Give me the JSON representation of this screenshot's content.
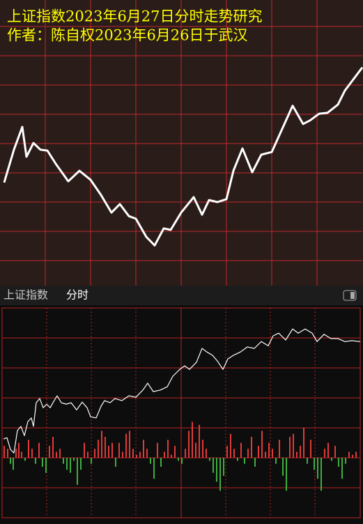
{
  "chart_data": [
    {
      "type": "line",
      "title": "上证指数2023年6月27日分时走势研究",
      "subtitle": "作者：陈自权2023年6月26日于武汉",
      "x": [
        6,
        20,
        32,
        38,
        48,
        58,
        68,
        80,
        98,
        114,
        130,
        145,
        160,
        172,
        185,
        195,
        210,
        222,
        235,
        245,
        260,
        278,
        290,
        300,
        312,
        325,
        335,
        348,
        362,
        375,
        390,
        405,
        420,
        435,
        445,
        458,
        470,
        485,
        495,
        520
      ],
      "values": [
        36.7,
        47.9,
        55.7,
        45.5,
        50.2,
        47.9,
        47.6,
        43.1,
        37.1,
        40.7,
        37.6,
        32.4,
        26.4,
        29.3,
        25.2,
        24.3,
        18.1,
        15.2,
        21,
        20.5,
        26.4,
        31.7,
        25.7,
        30.7,
        30,
        31,
        40.7,
        48.3,
        40.2,
        46.2,
        47.1,
        55,
        62.9,
        56.7,
        57.9,
        60.2,
        60.5,
        63.3,
        68.1,
        76
      ],
      "color": "#ffffff",
      "xlim": [
        0,
        520
      ],
      "ylim": [
        0,
        100
      ],
      "xticks": [
        65,
        130,
        195,
        260,
        325,
        390,
        455
      ],
      "yticks": [
        10,
        20,
        30,
        40,
        50,
        60,
        70,
        80,
        90
      ],
      "grid": true,
      "grid_color": "#c0282a"
    },
    {
      "type": "line",
      "title": "上证指数",
      "subtitle": "分时",
      "x": [
        2,
        7,
        12,
        17,
        22,
        27,
        32,
        37,
        42,
        45,
        49,
        54,
        59,
        64,
        69,
        74,
        79,
        85,
        92,
        99,
        107,
        115,
        122,
        127,
        135,
        142,
        147,
        155,
        162,
        172,
        182,
        192,
        202,
        209,
        217,
        227,
        237,
        245,
        255,
        262,
        269,
        279,
        287,
        294,
        302,
        309,
        317,
        324,
        332,
        342,
        352,
        362,
        372,
        382,
        389,
        397,
        407,
        417,
        425,
        435,
        445,
        452,
        462,
        472,
        482,
        492,
        502,
        514
      ],
      "values": [
        6.3,
        6.7,
        2.8,
        1.6,
        9.1,
        10.5,
        7.4,
        12.1,
        13.3,
        10.5,
        18.4,
        19.8,
        16.7,
        17.9,
        16.7,
        18.8,
        20.7,
        18.4,
        17.9,
        18.4,
        16,
        18.6,
        16.7,
        13.7,
        13.3,
        17.2,
        19.1,
        18.4,
        19.8,
        19.1,
        20.7,
        20.2,
        22.6,
        24.9,
        22.1,
        22.6,
        23.7,
        27.2,
        29.5,
        30.7,
        29.5,
        31.9,
        36.5,
        35.3,
        34.2,
        32.3,
        29.5,
        33,
        34.2,
        35.3,
        37,
        36.5,
        38.8,
        37.4,
        40.7,
        41.6,
        39.3,
        43,
        41.6,
        43,
        41.6,
        38.8,
        41.2,
        39.8,
        39.8,
        38.8,
        39.1,
        38.8
      ],
      "color": "#ffffff",
      "xlim": [
        0,
        514
      ],
      "ylim": [
        -20,
        50
      ],
      "xticks": [
        64,
        128,
        192,
        257,
        321,
        385,
        449
      ],
      "yticks": [
        -20,
        -10,
        0,
        10,
        20,
        30,
        40,
        50
      ],
      "grid": true,
      "grid_color": "#b82424"
    },
    {
      "type": "bar",
      "x": [
        3,
        8,
        12,
        16,
        20,
        24,
        28,
        33,
        38,
        43,
        48,
        53,
        58,
        63,
        68,
        73,
        78,
        83,
        88,
        93,
        98,
        103,
        108,
        113,
        118,
        123,
        128,
        133,
        138,
        143,
        148,
        153,
        158,
        163,
        168,
        173,
        178,
        183,
        188,
        193,
        198,
        203,
        208,
        213,
        218,
        223,
        228,
        233,
        238,
        243,
        248,
        253,
        258,
        263,
        268,
        273,
        278,
        283,
        288,
        293,
        298,
        303,
        308,
        313,
        318,
        323,
        328,
        333,
        338,
        343,
        348,
        353,
        358,
        363,
        368,
        373,
        378,
        383,
        388,
        393,
        398,
        403,
        408,
        413,
        418,
        423,
        428,
        433,
        438,
        443,
        448,
        453,
        458,
        463,
        468,
        473,
        478,
        483,
        488,
        493,
        498,
        503,
        508
      ],
      "values": [
        4,
        3,
        -2,
        -4,
        3,
        5,
        2,
        -1,
        6,
        3,
        -2,
        5,
        -3,
        -5,
        4,
        7,
        2,
        3,
        -2,
        -4,
        -5,
        -1,
        -9,
        -4,
        5,
        2,
        -2,
        3,
        6,
        9,
        7,
        4,
        5,
        -3,
        5,
        2,
        8,
        9,
        3,
        1,
        2,
        6,
        3,
        -2,
        -7,
        5,
        -3,
        2,
        6,
        1,
        4,
        -1,
        -2,
        3,
        9,
        12,
        5,
        11,
        6,
        3,
        -1,
        -5,
        -8,
        -11,
        -6,
        4,
        8,
        3,
        -1,
        5,
        -2,
        3,
        7,
        -3,
        4,
        9,
        2,
        5,
        3,
        -2,
        6,
        -6,
        -11,
        7,
        8,
        2,
        4,
        10,
        -2,
        6,
        -4,
        -7,
        -11,
        3,
        5,
        -1,
        4,
        -3,
        -7,
        -2,
        2,
        1,
        2
      ],
      "up_color": "#e23a3a",
      "down_color": "#3fae3f",
      "xlim": [
        0,
        514
      ],
      "ylim": [
        -20,
        50
      ]
    }
  ]
}
